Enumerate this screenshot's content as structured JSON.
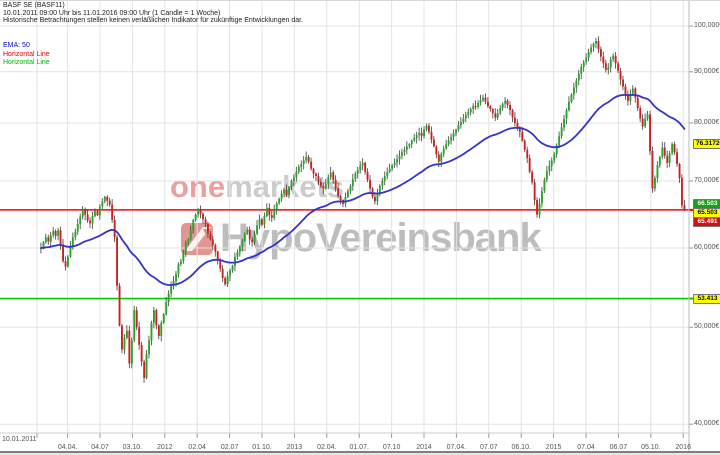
{
  "header": {
    "title": "BASF SE (BASF11)",
    "subtitle": "10.01.2011 09:00 Uhr bis 11.01.2016 09:00 Uhr (1 Candle = 1 Woche)",
    "disclaimer": "Historische Betrachtungen stellen keinen verläßlichen Indikator für zukünftige Entwicklungen dar."
  },
  "legend": {
    "ema_label": "EMA: 50",
    "red_line_label": "Horizontal Line",
    "green_line_label": "Horizontal Line"
  },
  "watermark": {
    "brand_one": "one",
    "brand_markets": "markets",
    "bank": "HypoVereinsbank"
  },
  "colors": {
    "candle_up": "#27a527",
    "candle_down": "#cc2121",
    "wick": "#3c3c3c",
    "ema": "#3434cc",
    "red_line": "#ff0000",
    "green_line": "#00cc00",
    "grid": "#e3e3e3",
    "axis": "#999999"
  },
  "chart_data": {
    "type": "candlestick",
    "instrument": "BASF SE (BASF11)",
    "interval": "1 Candle = 1 Woche",
    "range_start": "10.01.2011 09:00 Uhr",
    "range_end": "11.01.2016 09:00 Uhr",
    "scale": "logarithmic",
    "ema_period": 50,
    "ema_last_value": "76.31726",
    "horizontal_lines": [
      {
        "value": 65.503,
        "color": "#ff0000",
        "label": "65.503"
      },
      {
        "value": 53.413,
        "color": "#00cc00",
        "label": "53.413"
      }
    ],
    "price_boxes": [
      {
        "text": "76.31726",
        "value": 76.31726,
        "bg": "#ffff00",
        "fg": "#000000"
      },
      {
        "text": "66.503",
        "value": 66.503,
        "bg": "#18a018",
        "fg": "#ffffff"
      },
      {
        "text": "65.503",
        "value": 65.503,
        "bg": "#ffff00",
        "fg": "#000000"
      },
      {
        "text": "65.491",
        "value": 65.491,
        "bg": "#cc1414",
        "fg": "#ffffff"
      },
      {
        "text": "53.413",
        "value": 53.413,
        "bg": "#ffff00",
        "fg": "#000000"
      }
    ],
    "y_axis": {
      "ticks": [
        {
          "label": "100,000€",
          "value": 100
        },
        {
          "label": "90,000€",
          "value": 90
        },
        {
          "label": "80,000€",
          "value": 80
        },
        {
          "label": "70,000€",
          "value": 70
        },
        {
          "label": "60,000€",
          "value": 60
        },
        {
          "label": "50,000€",
          "value": 50
        },
        {
          "label": "40,000€",
          "value": 40
        }
      ]
    },
    "x_axis": {
      "start_label": "10.01.2011",
      "tick_labels": [
        "04.04.",
        "04.07",
        "03.10.",
        "2012",
        "02.04",
        "02.07",
        "01.10.",
        "2013",
        "02.04.",
        "01.07.",
        "07.10",
        "2014",
        "07.04.",
        "07.07",
        "06.10.",
        "2015",
        "07.04",
        "06.07",
        "05.10.",
        "2016"
      ]
    },
    "weekly_closes": [
      60.0,
      60.8,
      61.5,
      60.9,
      61.8,
      62.4,
      61.7,
      62.5,
      60.5,
      58.2,
      57.5,
      58.8,
      60.2,
      61.5,
      62.3,
      63.4,
      64.5,
      65.5,
      64.8,
      63.9,
      63.5,
      64.6,
      65.3,
      64.7,
      66.0,
      66.8,
      67.5,
      66.9,
      66.3,
      64.0,
      61.5,
      55.0,
      50.2,
      47.5,
      48.8,
      49.6,
      46.0,
      48.5,
      52.0,
      50.0,
      48.0,
      46.2,
      44.5,
      47.0,
      48.5,
      50.5,
      52.0,
      50.2,
      49.0,
      50.5,
      51.5,
      53.0,
      54.0,
      55.2,
      55.6,
      56.5,
      57.8,
      58.2,
      59.5,
      60.8,
      61.2,
      62.5,
      64.0,
      64.8,
      65.6,
      64.9,
      64.1,
      63.4,
      62.0,
      61.2,
      60.4,
      59.5,
      58.4,
      57.2,
      56.0,
      55.2,
      56.3,
      57.0,
      57.6,
      58.8,
      59.4,
      60.2,
      61.0,
      62.0,
      62.6,
      61.2,
      60.8,
      62.0,
      63.2,
      64.1,
      63.3,
      64.6,
      65.8,
      64.7,
      64.3,
      65.5,
      66.5,
      67.2,
      68.0,
      68.6,
      67.8,
      69.0,
      70.0,
      70.6,
      71.5,
      72.3,
      72.8,
      73.4,
      74.0,
      73.2,
      72.0,
      71.2,
      70.8,
      69.9,
      69.2,
      68.8,
      69.5,
      70.6,
      71.4,
      70.2,
      68.8,
      67.6,
      67.0,
      66.4,
      67.5,
      68.4,
      69.2,
      70.3,
      71.2,
      71.8,
      72.5,
      73.0,
      71.5,
      70.2,
      68.8,
      67.5,
      66.8,
      68.0,
      69.2,
      70.0,
      70.8,
      71.5,
      72.0,
      72.6,
      73.0,
      73.6,
      74.2,
      74.8,
      75.2,
      75.8,
      76.2,
      76.8,
      77.3,
      77.8,
      78.2,
      77.6,
      78.8,
      79.5,
      78.4,
      77.0,
      75.8,
      74.4,
      73.2,
      74.5,
      75.4,
      76.2,
      76.8,
      77.5,
      78.1,
      78.8,
      79.6,
      80.2,
      80.8,
      81.5,
      82.0,
      82.6,
      83.2,
      83.0,
      83.8,
      84.3,
      84.8,
      84.0,
      83.2,
      82.6,
      81.8,
      81.0,
      81.8,
      82.8,
      83.6,
      84.2,
      83.4,
      82.4,
      81.0,
      80.0,
      79.0,
      78.4,
      76.8,
      75.2,
      73.8,
      71.5,
      69.8,
      67.0,
      64.8,
      66.5,
      68.4,
      70.2,
      71.6,
      72.5,
      73.4,
      74.5,
      76.0,
      77.6,
      79.2,
      80.8,
      82.4,
      84.0,
      85.4,
      86.8,
      88.2,
      89.6,
      91.0,
      92.0,
      93.0,
      94.2,
      95.2,
      96.0,
      96.6,
      94.8,
      93.2,
      91.8,
      90.4,
      90.9,
      92.6,
      93.4,
      91.8,
      90.2,
      88.4,
      87.0,
      85.4,
      84.2,
      85.6,
      86.6,
      84.8,
      82.8,
      80.8,
      79.4,
      80.8,
      81.6,
      75.0,
      68.8,
      70.5,
      72.6,
      74.0,
      75.6,
      74.2,
      73.0,
      74.6,
      76.2,
      74.8,
      72.8,
      70.5,
      66.2,
      65.5
    ]
  }
}
